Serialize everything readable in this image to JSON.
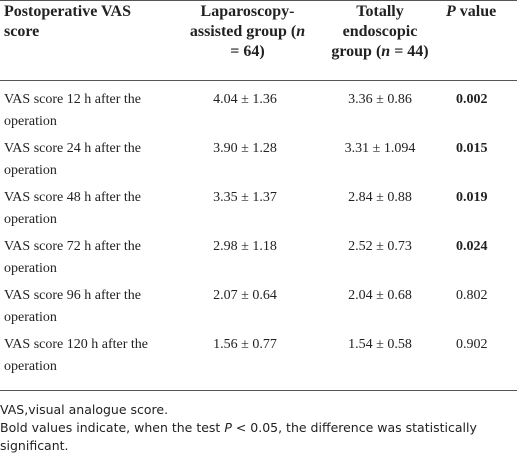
{
  "table": {
    "header": [
      [
        "Postoperative VAS score"
      ],
      [
        "Laparoscopy-assisted group (",
        "n",
        " = 64)"
      ],
      [
        "Totally endoscopic group (",
        "n",
        " = 44)"
      ],
      [
        "P",
        " value"
      ]
    ],
    "rows": [
      [
        "VAS score 12 h after the operation",
        "4.04 ± 1.36",
        "3.36 ± 0.86",
        "0.002"
      ],
      [
        "VAS score 24 h after the operation",
        "3.90 ± 1.28",
        "3.31 ± 1.094",
        "0.015"
      ],
      [
        "VAS score 48 h after the operation",
        "3.35 ± 1.37",
        "2.84 ± 0.88",
        "0.019"
      ],
      [
        "VAS score 72 h after the operation",
        "2.98 ± 1.18",
        "2.52 ± 0.73",
        "0.024"
      ],
      [
        "VAS score 96 h after the operation",
        "2.07 ± 0.64",
        "2.04 ± 0.68",
        "0.802"
      ],
      [
        "VAS score 120 h after the operation",
        "1.56 ± 0.77",
        "1.54 ± 0.58",
        "0.902"
      ]
    ],
    "footnotes": [
      [
        "VAS,visual analogue score."
      ],
      [
        "Bold values indicate, when the test ",
        "P",
        " < 0.05, the difference was statistically significant."
      ]
    ]
  }
}
